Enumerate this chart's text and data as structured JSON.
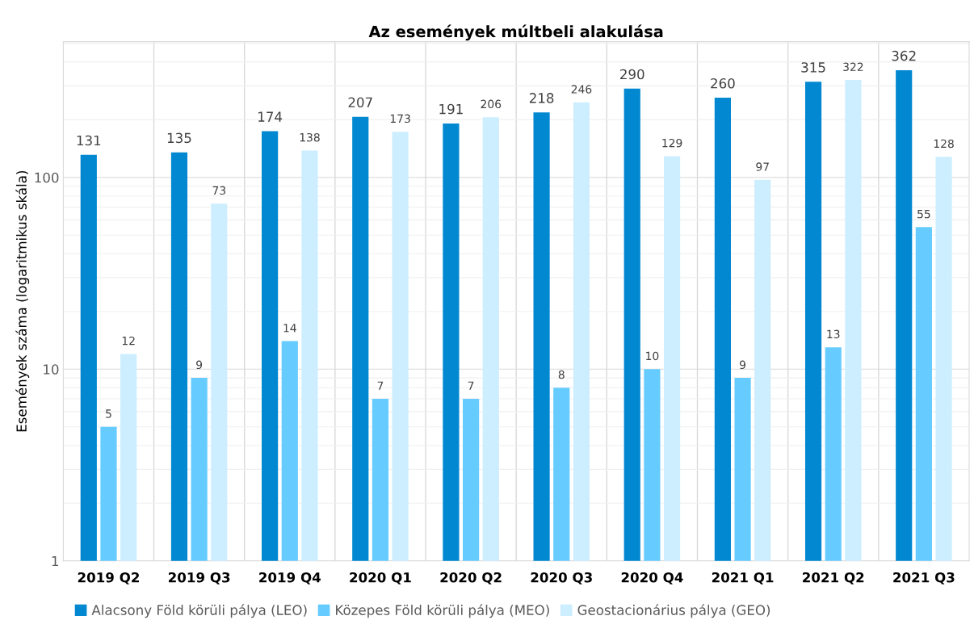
{
  "chart_data": {
    "type": "bar",
    "title": "Az események múltbeli alakulása",
    "ylabel": "Események száma (logaritmikus skála)",
    "categories": [
      "2019 Q2",
      "2019 Q3",
      "2019 Q4",
      "2020 Q1",
      "2020 Q2",
      "2020 Q3",
      "2020 Q4",
      "2021 Q1",
      "2021 Q2",
      "2021 Q3"
    ],
    "series": [
      {
        "name": "Alacsony Föld körüli pálya (LEO)",
        "color": "#0288d1",
        "values": [
          131,
          135,
          174,
          207,
          191,
          218,
          290,
          260,
          315,
          362
        ]
      },
      {
        "name": "Közepes Föld körüli pálya (MEO)",
        "color": "#66ccff",
        "values": [
          5,
          9,
          14,
          7,
          7,
          8,
          10,
          9,
          13,
          55
        ]
      },
      {
        "name": "Geostacionárius pálya (GEO)",
        "color": "#cceeff",
        "values": [
          12,
          73,
          138,
          173,
          206,
          246,
          129,
          97,
          322,
          128
        ]
      }
    ],
    "log": true,
    "ylim": [
      1,
      510
    ],
    "yticks": [
      1,
      10,
      100
    ],
    "grid": true,
    "legend": "bottom",
    "data_labels": true
  }
}
